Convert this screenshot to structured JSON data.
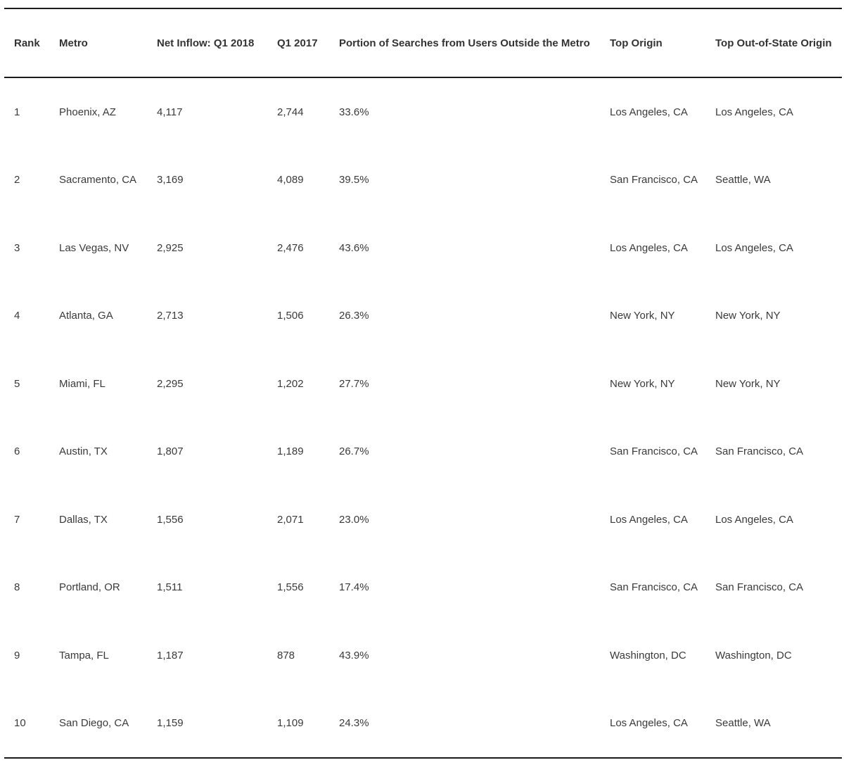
{
  "table": {
    "headers": [
      "Rank",
      "Metro",
      "Net Inflow: Q1 2018",
      "Q1 2017",
      "Portion of Searches from Users Outside the Metro",
      "Top Origin",
      "Top Out-of-State Origin"
    ],
    "rows": [
      [
        "1",
        "Phoenix, AZ",
        "4,117",
        "2,744",
        "33.6%",
        "Los Angeles, CA",
        "Los Angeles, CA"
      ],
      [
        "2",
        "Sacramento, CA",
        "3,169",
        "4,089",
        "39.5%",
        "San Francisco, CA",
        "Seattle, WA"
      ],
      [
        "3",
        "Las Vegas, NV",
        "2,925",
        "2,476",
        "43.6%",
        "Los Angeles, CA",
        "Los Angeles, CA"
      ],
      [
        "4",
        "Atlanta, GA",
        "2,713",
        "1,506",
        "26.3%",
        "New York, NY",
        "New York, NY"
      ],
      [
        "5",
        "Miami, FL",
        "2,295",
        "1,202",
        "27.7%",
        "New York, NY",
        "New York, NY"
      ],
      [
        "6",
        "Austin, TX",
        "1,807",
        "1,189",
        "26.7%",
        "San Francisco, CA",
        "San Francisco, CA"
      ],
      [
        "7",
        "Dallas, TX",
        "1,556",
        "2,071",
        "23.0%",
        "Los Angeles, CA",
        "Los Angeles, CA"
      ],
      [
        "8",
        "Portland, OR",
        "1,511",
        "1,556",
        "17.4%",
        "San Francisco, CA",
        "San Francisco, CA"
      ],
      [
        "9",
        "Tampa, FL",
        "1,187",
        "878",
        "43.9%",
        "Washington, DC",
        "Washington, DC"
      ],
      [
        "10",
        "San Diego, CA",
        "1,159",
        "1,109",
        "24.3%",
        "Los Angeles, CA",
        "Seattle, WA"
      ]
    ]
  }
}
